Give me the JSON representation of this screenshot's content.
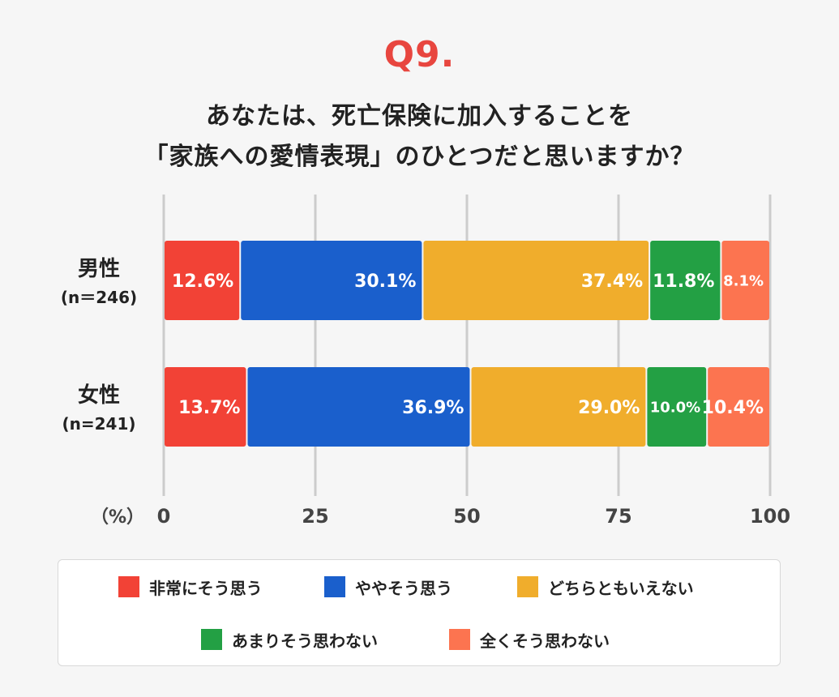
{
  "question_number": "Q9.",
  "title_line1": "あなたは、死亡保険に加入することを",
  "title_line2": "「家族への愛情表現」のひとつだと思いますか？",
  "colors": {
    "very_much": "#f24236",
    "somewhat": "#1a5fcc",
    "neutral": "#f0ad2c",
    "not_really": "#23a044",
    "not_at_all": "#fc7450",
    "grid": "#cccccc"
  },
  "chart_data": {
    "type": "bar",
    "orientation": "horizontal",
    "stacked": true,
    "unit_label": "（%）",
    "xlim": [
      0,
      100
    ],
    "ticks": [
      0,
      25,
      50,
      75,
      100
    ],
    "categories": [
      {
        "name": "男性",
        "n": "(n＝246)"
      },
      {
        "name": "女性",
        "n": "(n=241)"
      }
    ],
    "series": [
      {
        "key": "very_much",
        "name": "非常にそう思う",
        "values": [
          12.6,
          13.7
        ],
        "labels": [
          "12.6%",
          "13.7%"
        ]
      },
      {
        "key": "somewhat",
        "name": "ややそう思う",
        "values": [
          30.1,
          36.9
        ],
        "labels": [
          "30.1%",
          "36.9%"
        ]
      },
      {
        "key": "neutral",
        "name": "どちらともいえない",
        "values": [
          37.4,
          29.0
        ],
        "labels": [
          "37.4%",
          "29.0%"
        ]
      },
      {
        "key": "not_really",
        "name": "あまりそう思わない",
        "values": [
          11.8,
          10.0
        ],
        "labels": [
          "11.8%",
          "10.0%"
        ]
      },
      {
        "key": "not_at_all",
        "name": "全くそう思わない",
        "values": [
          8.1,
          10.4
        ],
        "labels": [
          "8.1%",
          "10.4%"
        ]
      }
    ],
    "legend_position": "bottom"
  }
}
